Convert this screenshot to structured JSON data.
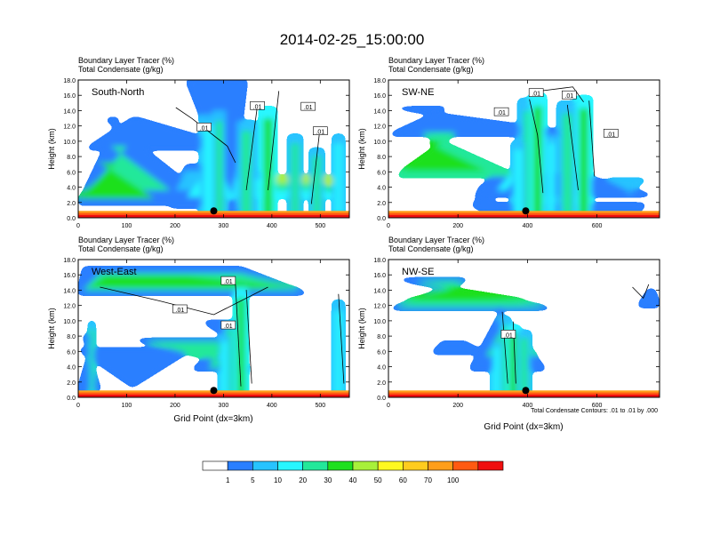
{
  "title": "2014-02-25_15:00:00",
  "colors": {
    "levels": [
      "#ffffff",
      "#2a7fff",
      "#27c3ff",
      "#27f6ff",
      "#22e89a",
      "#1fe01f",
      "#a8f03a",
      "#fff820",
      "#ffcc1e",
      "#ff9e1a",
      "#ff5a12",
      "#f00f0f"
    ]
  },
  "colorbar_labels": [
    "1",
    "5",
    "10",
    "20",
    "30",
    "40",
    "50",
    "60",
    "70",
    "100"
  ],
  "chart_data": [
    {
      "type": "heatmap",
      "label": "South-North",
      "line1": "Boundary Layer Tracer   (%)",
      "line2": "Total Condensate   (g/kg)",
      "ylabel": "Height (km)",
      "xlabel": "",
      "xlim": [
        0,
        560
      ],
      "ylim": [
        0,
        18
      ],
      "xticks": [
        "0",
        "100",
        "200",
        "300",
        "400",
        "500"
      ],
      "xtick_values": [
        0,
        100,
        200,
        300,
        400,
        500
      ],
      "yticks": [
        "0.0",
        "2.0",
        "4.0",
        "6.0",
        "8.0",
        "10.0",
        "12.0",
        "14.0",
        "16.0",
        "18.0"
      ],
      "ytick_values": [
        0,
        2,
        4,
        6,
        8,
        10,
        12,
        14,
        16,
        18
      ],
      "marker_x": 280,
      "contour_labels": [
        {
          "text": ".01",
          "x": 260,
          "y": 11.8
        },
        {
          "text": ".01",
          "x": 370,
          "y": 14.6
        },
        {
          "text": ".01",
          "x": 475,
          "y": 14.5
        },
        {
          "text": ".01",
          "x": 500,
          "y": 11.3
        }
      ]
    },
    {
      "type": "heatmap",
      "label": "SW-NE",
      "line1": "Boundary Layer Tracer   (%)",
      "line2": "Total Condensate   (g/kg)",
      "ylabel": "Height (km)",
      "xlabel": "",
      "xlim": [
        0,
        780
      ],
      "ylim": [
        0,
        18
      ],
      "xticks": [
        "0",
        "200",
        "400",
        "600"
      ],
      "xtick_values": [
        0,
        200,
        400,
        600
      ],
      "yticks": [
        "0.0",
        "2.0",
        "4.0",
        "6.0",
        "8.0",
        "10.0",
        "12.0",
        "14.0",
        "16.0",
        "18.0"
      ],
      "ytick_values": [
        0,
        2,
        4,
        6,
        8,
        10,
        12,
        14,
        16,
        18
      ],
      "marker_x": 395,
      "contour_labels": [
        {
          "text": ".01",
          "x": 325,
          "y": 13.8
        },
        {
          "text": ".01",
          "x": 425,
          "y": 16.3
        },
        {
          "text": ".01",
          "x": 520,
          "y": 16.0
        },
        {
          "text": ".01",
          "x": 640,
          "y": 11.0
        }
      ]
    },
    {
      "type": "heatmap",
      "label": "West-East",
      "line1": "Boundary Layer Tracer   (%)",
      "line2": "Total Condensate   (g/kg)",
      "ylabel": "Height (km)",
      "xlabel": "Grid Point (dx=3km)",
      "xlim": [
        0,
        560
      ],
      "ylim": [
        0,
        18
      ],
      "xticks": [
        "0",
        "100",
        "200",
        "300",
        "400",
        "500"
      ],
      "xtick_values": [
        0,
        100,
        200,
        300,
        400,
        500
      ],
      "yticks": [
        "0.0",
        "2.0",
        "4.0",
        "6.0",
        "8.0",
        "10.0",
        "12.0",
        "14.0",
        "16.0",
        "18.0"
      ],
      "ytick_values": [
        0,
        2,
        4,
        6,
        8,
        10,
        12,
        14,
        16,
        18
      ],
      "marker_x": 280,
      "contour_labels": [
        {
          "text": ".01",
          "x": 310,
          "y": 15.2
        },
        {
          "text": ".01",
          "x": 210,
          "y": 11.5
        },
        {
          "text": ".01",
          "x": 310,
          "y": 9.4
        }
      ]
    },
    {
      "type": "heatmap",
      "label": "NW-SE",
      "line1": "Boundary Layer Tracer   (%)",
      "line2": "Total Condensate   (g/kg)",
      "ylabel": "Height (km)",
      "xlabel": "Grid Point (dx=3km)",
      "xlim": [
        0,
        780
      ],
      "ylim": [
        0,
        18
      ],
      "xticks": [
        "0",
        "200",
        "400",
        "600"
      ],
      "xtick_values": [
        0,
        200,
        400,
        600
      ],
      "yticks": [
        "0.0",
        "2.0",
        "4.0",
        "6.0",
        "8.0",
        "10.0",
        "12.0",
        "14.0",
        "16.0",
        "18.0"
      ],
      "ytick_values": [
        0,
        2,
        4,
        6,
        8,
        10,
        12,
        14,
        16,
        18
      ],
      "marker_x": 395,
      "contour_labels": [
        {
          "text": ".01",
          "x": 345,
          "y": 8.2
        }
      ],
      "footnote": "Total Condensate Contours: .01 to .01 by .000"
    }
  ]
}
